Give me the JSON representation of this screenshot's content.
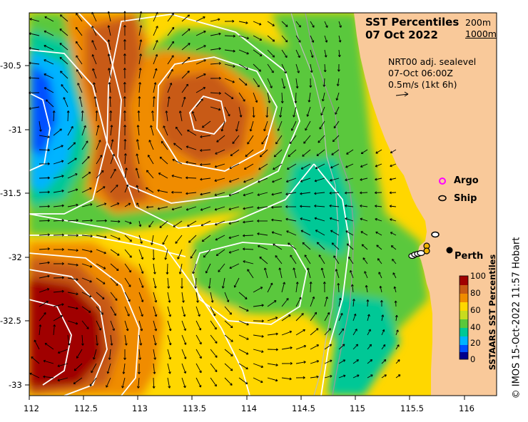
{
  "title": {
    "line1": "SST Percentiles",
    "line2": "07 Oct 2022"
  },
  "depth_legend": {
    "c200": "200m",
    "c1000": "1000m"
  },
  "info": {
    "source": "NRT00 adj. sealevel",
    "time": "07-Oct 06:00Z",
    "scale": "0.5m/s (1kt 6h)"
  },
  "markers": {
    "argo": "Argo",
    "ship": "Ship",
    "perth": "Perth"
  },
  "credit": "© IMOS 15-Oct-2022 11:57 Hobart",
  "colorbar": {
    "title": "SSTAARS SST Percentiles",
    "ticks": [
      "100",
      "80",
      "60",
      "40",
      "20",
      "0"
    ]
  },
  "axes": {
    "x_ticks": [
      "112",
      "112.5",
      "113",
      "113.5",
      "114",
      "114.5",
      "115",
      "115.5",
      "116"
    ],
    "y_ticks": [
      "-30.5",
      "-31",
      "-31.5",
      "-32",
      "-32.5",
      "-33"
    ]
  },
  "colors": {
    "land": "#f9c99a",
    "contour": "#ffffff",
    "argo": "#ff00ff",
    "p0": "#00008c",
    "p10": "#0050ff",
    "p20": "#00b4ff",
    "p35": "#00c896",
    "p50": "#5ac83c",
    "p60": "#c8dc1e",
    "p70": "#ffd700",
    "p80": "#f08c00",
    "p88": "#c85a14",
    "p100": "#a00000"
  }
}
